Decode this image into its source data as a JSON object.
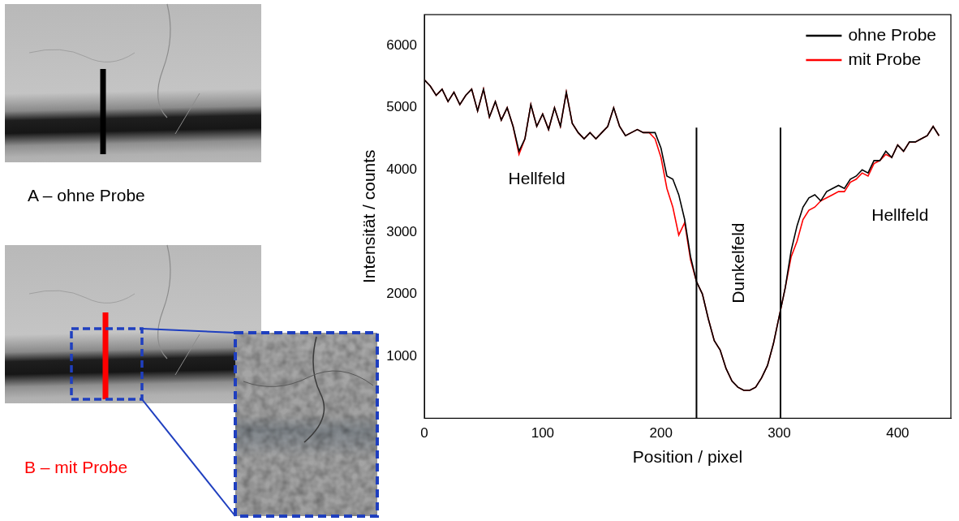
{
  "chart_data": {
    "type": "line",
    "x_label": "Position / pixel",
    "y_label": "Intensität / counts",
    "x": [
      0,
      5,
      10,
      15,
      20,
      25,
      30,
      35,
      40,
      45,
      50,
      55,
      60,
      65,
      70,
      75,
      80,
      85,
      90,
      95,
      100,
      105,
      110,
      115,
      120,
      125,
      130,
      135,
      140,
      145,
      150,
      155,
      160,
      165,
      170,
      175,
      180,
      185,
      190,
      195,
      200,
      205,
      210,
      215,
      220,
      225,
      230,
      235,
      240,
      245,
      250,
      255,
      260,
      265,
      270,
      275,
      280,
      285,
      290,
      295,
      300,
      305,
      310,
      315,
      320,
      325,
      330,
      335,
      340,
      345,
      350,
      355,
      360,
      365,
      370,
      375,
      380,
      385,
      390,
      395,
      400,
      405,
      410,
      415,
      420,
      425,
      430,
      435
    ],
    "series": [
      {
        "name": "ohne Probe",
        "color": "#000000",
        "values": [
          5450,
          5350,
          5200,
          5300,
          5100,
          5250,
          5050,
          5200,
          5300,
          4950,
          5300,
          4850,
          5100,
          4800,
          5000,
          4700,
          4300,
          4500,
          5050,
          4700,
          4900,
          4650,
          5000,
          4700,
          5250,
          4750,
          4600,
          4500,
          4600,
          4500,
          4600,
          4700,
          5000,
          4700,
          4550,
          4600,
          4650,
          4600,
          4600,
          4600,
          4350,
          3900,
          3850,
          3600,
          3200,
          2600,
          2200,
          2000,
          1600,
          1250,
          1100,
          800,
          600,
          500,
          450,
          450,
          500,
          650,
          850,
          1200,
          1650,
          2100,
          2700,
          3100,
          3400,
          3550,
          3600,
          3500,
          3650,
          3700,
          3750,
          3700,
          3850,
          3900,
          4000,
          3950,
          4150,
          4150,
          4300,
          4200,
          4400,
          4300,
          4450,
          4450,
          4500,
          4550,
          4700,
          4550
        ]
      },
      {
        "name": "mit Probe",
        "color": "#ff0000",
        "values": [
          5450,
          5350,
          5200,
          5300,
          5100,
          5250,
          5050,
          5200,
          5300,
          4950,
          5300,
          4850,
          5100,
          4800,
          5000,
          4700,
          4250,
          4500,
          5050,
          4700,
          4900,
          4650,
          5000,
          4700,
          5250,
          4750,
          4600,
          4500,
          4600,
          4500,
          4600,
          4700,
          5000,
          4700,
          4550,
          4600,
          4650,
          4600,
          4600,
          4500,
          4200,
          3700,
          3400,
          2950,
          3150,
          2550,
          2200,
          2000,
          1600,
          1250,
          1100,
          800,
          600,
          500,
          450,
          450,
          500,
          650,
          850,
          1200,
          1650,
          2100,
          2600,
          2850,
          3200,
          3350,
          3400,
          3500,
          3550,
          3600,
          3650,
          3650,
          3800,
          3850,
          3950,
          3900,
          4100,
          4150,
          4250,
          4200,
          4400,
          4300,
          4450,
          4450,
          4500,
          4550,
          4700,
          4550
        ]
      }
    ],
    "xlim": [
      0,
      445
    ],
    "xticks": [
      0,
      100,
      200,
      300,
      400
    ],
    "ylim": [
      0,
      6500
    ],
    "yticks": [
      1000,
      2000,
      3000,
      4000,
      5000,
      6000
    ],
    "grid": false,
    "legend": "upper right",
    "vlines": [
      230,
      301
    ],
    "annotations": [
      {
        "text": "Hellfeld",
        "x": 95,
        "y": 3850
      },
      {
        "text": "Dunkelfeld",
        "x": 266,
        "y": 2500
      },
      {
        "text": "Hellfeld",
        "x": 402,
        "y": 3250
      }
    ]
  },
  "images": [
    {
      "label": "A – ohne Probe",
      "color": "#000000"
    },
    {
      "label": "B – mit Probe",
      "color": "#ff0000"
    }
  ]
}
